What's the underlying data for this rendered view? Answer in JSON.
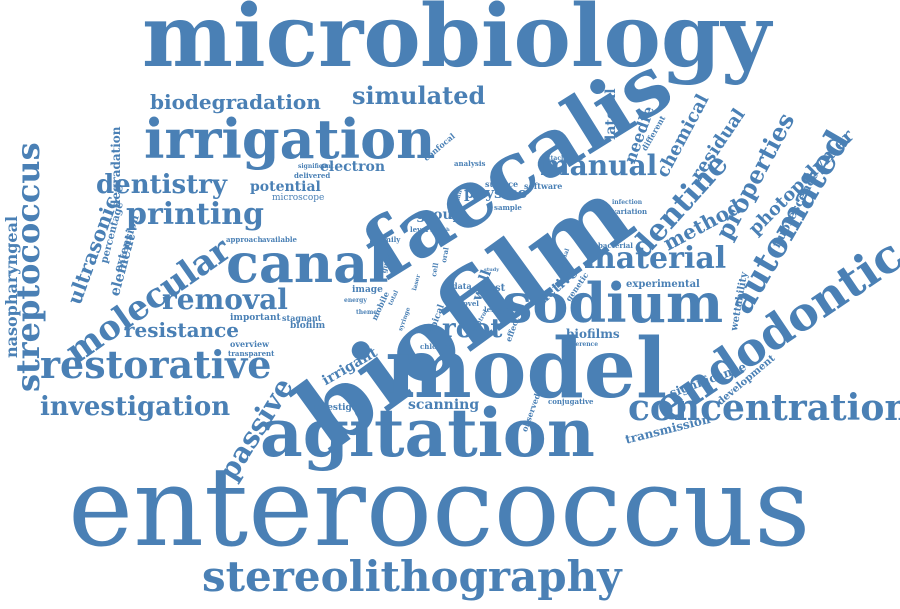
{
  "colors": {
    "word": "#4a80b5",
    "background": "#ffffff"
  },
  "words": {
    "microbiology": "microbiology",
    "enterococcus": "enterococcus",
    "biofilm_big": "biofilm",
    "faecalis": "faecalis",
    "model": "model",
    "agitation": "agitation",
    "canal": "canal",
    "sodium": "sodium",
    "irrigation": "irrigation",
    "endodontic": "endodontic",
    "stereolithography": "stereolithography",
    "concentration": "concentration",
    "restorative": "restorative",
    "streptococcus": "streptococcus",
    "investigation": "investigation",
    "automated": "automated",
    "material": "material",
    "dentine": "dentine",
    "molecular": "molecular",
    "printing": "printing",
    "dentistry": "dentistry",
    "removal": "removal",
    "manual": "manual",
    "simulated": "simulated",
    "biodegradation": "biodegradation",
    "resistance": "resistance",
    "passive": "passive",
    "root": "root",
    "properties": "properties",
    "ultrasonic": "ultrasonic",
    "nasopharyngeal": "nasopharyngeal",
    "method": "method",
    "photopolymer": "photopolymer",
    "chemical": "chemical",
    "residual": "residual",
    "electron": "electron",
    "potential": "potential",
    "element": "element",
    "significance": "significance",
    "scanning": "scanning",
    "irrigant": "irrigant",
    "physico": "physico",
    "group": "group",
    "active": "active",
    "biofilms": "biofilms",
    "degradation": "degradation",
    "lateral": "lateral",
    "needle": "needle",
    "wall": "wall",
    "experimental": "experimental",
    "fluorescence": "fluorescence",
    "development": "development",
    "transmission": "transmission",
    "microscope": "microscope",
    "important": "important",
    "stagnant": "stagnant",
    "overview": "overview",
    "transparent": "transparent",
    "biofilm_small": "biofilm",
    "investigate": "investigate",
    "image": "image",
    "test": "test",
    "surface": "surface",
    "software": "software",
    "sample": "sample",
    "approach": "approach",
    "available": "available",
    "family": "family",
    "bacterial": "bacterial",
    "extension": "extension",
    "percentage": "percentage",
    "genetic": "genetic",
    "conjugative": "conjugative",
    "observed": "observed",
    "confocal": "confocal",
    "analysis": "analysis",
    "attachment": "attachment",
    "different": "different",
    "significant": "significant",
    "delivered": "delivered",
    "effect": "effect",
    "chlorine": "chlorine",
    "length": "length",
    "novel": "novel",
    "level": "level",
    "data": "data",
    "infection": "infection",
    "variation": "variation",
    "wettability": "wettability",
    "difference": "difference",
    "apical": "apical",
    "mobile": "mobile",
    "total": "total",
    "syringe": "syringe",
    "energy": "energy",
    "theme": "theme",
    "control": "control",
    "oral": "oral",
    "cell": "cell",
    "external": "external",
    "gutta": "gutta",
    "laser": "laser",
    "growth": "growth",
    "study": "study",
    "human": "human"
  }
}
